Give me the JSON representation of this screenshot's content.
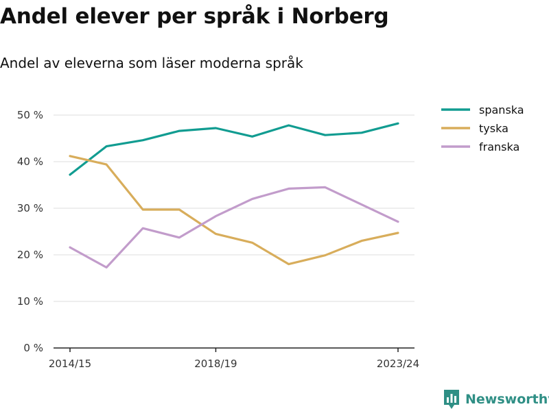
{
  "title": "Andel elever per språk i Norberg",
  "subtitle": "Andel av eleverna som läser moderna språk",
  "brand": {
    "name": "Newsworthy",
    "color": "#2f8f85",
    "icon": "bar-chart-logo-icon"
  },
  "chart_data": {
    "type": "line",
    "title": "Andel elever per språk i Norberg",
    "subtitle": "Andel av eleverna som läser moderna språk",
    "x": [
      "2014/15",
      "2015/16",
      "2016/17",
      "2017/18",
      "2018/19",
      "2019/20",
      "2020/21",
      "2021/22",
      "2022/23",
      "2023/24"
    ],
    "x_tick_labels": [
      "2014/15",
      "2018/19",
      "2023/24"
    ],
    "y_ticks": [
      0,
      10,
      20,
      30,
      40,
      50
    ],
    "y_tick_labels": [
      "0 %",
      "10 %",
      "20 %",
      "30 %",
      "40 %",
      "50 %"
    ],
    "ylim": [
      0,
      50
    ],
    "grid": true,
    "legend_position": "top-right",
    "series": [
      {
        "name": "spanska",
        "color": "#119c91",
        "values": [
          37.2,
          43.3,
          44.6,
          46.6,
          47.2,
          45.4,
          47.8,
          45.7,
          46.2,
          48.2
        ]
      },
      {
        "name": "tyska",
        "color": "#d8ad5b",
        "values": [
          41.2,
          39.4,
          29.7,
          29.7,
          24.5,
          22.6,
          18.0,
          19.9,
          23.0,
          24.7
        ]
      },
      {
        "name": "franska",
        "color": "#c29ccb",
        "values": [
          21.6,
          17.3,
          25.7,
          23.7,
          28.3,
          32.0,
          34.2,
          34.5,
          30.8,
          27.1
        ]
      }
    ]
  }
}
